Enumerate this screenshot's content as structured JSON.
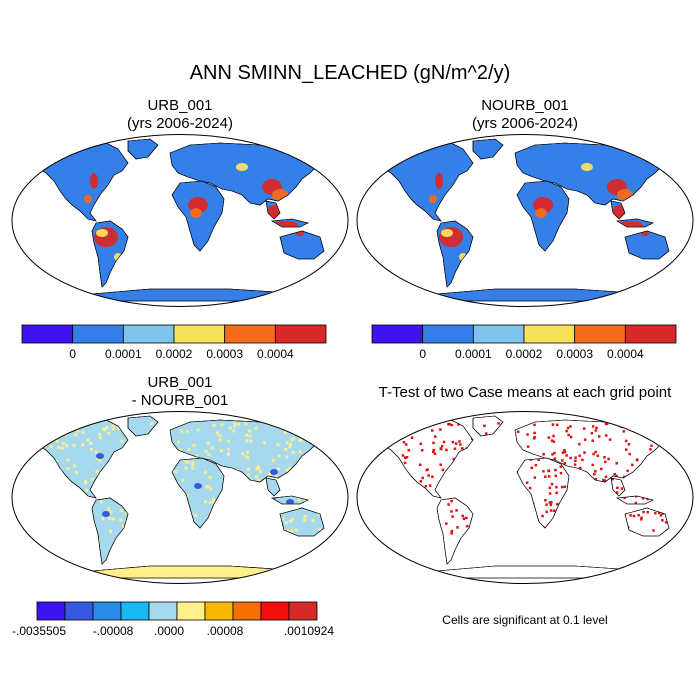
{
  "figure": {
    "title": "ANN SMINN_LEACHED (gN/m^2/y)"
  },
  "panels": {
    "urb": {
      "title_line1": "URB_001",
      "title_line2": "(yrs 2006-2024)"
    },
    "nourb": {
      "title_line1": "NOURB_001",
      "title_line2": "(yrs 2006-2024)"
    },
    "diff": {
      "title_line1": "URB_001",
      "title_line2": "- NOURB_001"
    },
    "ttest": {
      "title_line1": "T-Test of two Case means at each grid point",
      "note": "Cells are significant at 0.1 level"
    }
  },
  "colorbars": {
    "top": {
      "colors": [
        "#3f13f0",
        "#3580e8",
        "#7ec4ea",
        "#f7e25a",
        "#f46c1c",
        "#d8282a"
      ],
      "labels": [
        "0",
        "0.0001",
        "0.0002",
        "0.0003",
        "0.0004"
      ]
    },
    "diff": {
      "colors": [
        "#3f13f0",
        "#3758e0",
        "#2a8ae8",
        "#18b8f2",
        "#a6d8ee",
        "#fff08a",
        "#f9b800",
        "#f66f00",
        "#f40f0f",
        "#d42a2a"
      ],
      "labels": [
        "-.0035505",
        "-.00008",
        ".0000",
        ".00008",
        ".0010924"
      ]
    }
  },
  "map_colors": {
    "ocean": "#ffffff",
    "land_base": "#3580e8",
    "high": "#d8282a",
    "mid": "#f46c1c",
    "low": "#f7e25a",
    "diff_land": "#a6d8ee",
    "diff_pos": "#fff08a",
    "signif": "#e01010"
  }
}
